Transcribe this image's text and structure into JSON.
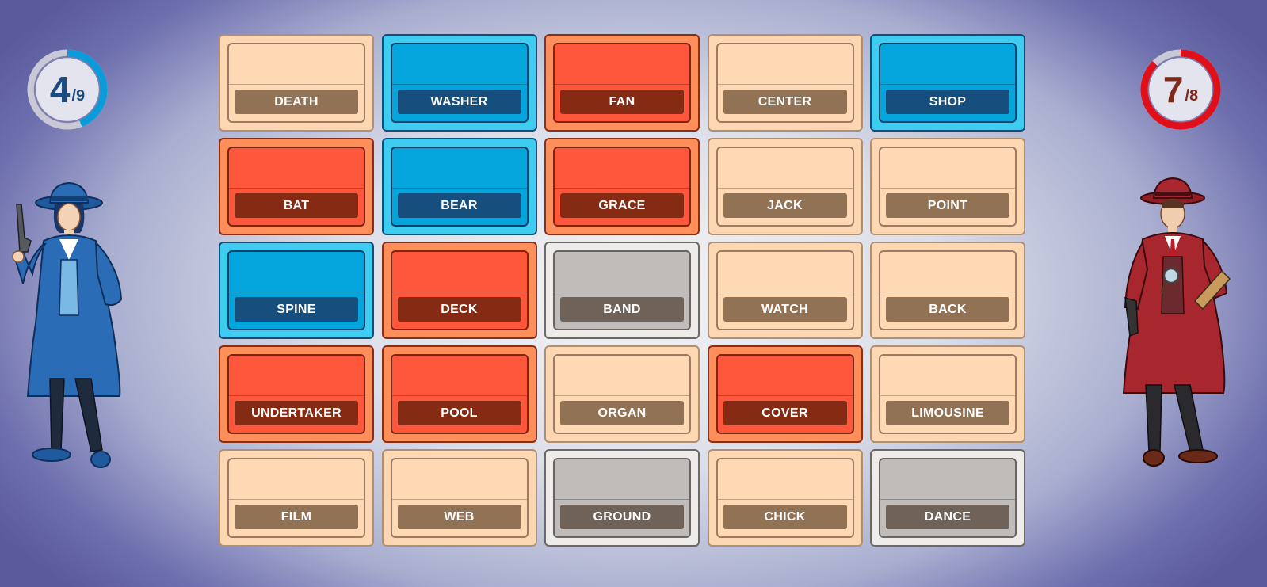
{
  "scores": {
    "blue": {
      "remaining": "4",
      "total": "/9",
      "color": "#0a9bd8",
      "progress": 0.44
    },
    "red": {
      "remaining": "7",
      "total": "/8",
      "color": "#e0101a",
      "progress": 0.875
    }
  },
  "agents": {
    "blue": {
      "icon": "blue-detective-icon"
    },
    "red": {
      "icon": "red-detective-icon"
    }
  },
  "board": {
    "cards": [
      {
        "word": "DEATH",
        "team": "neutral"
      },
      {
        "word": "WASHER",
        "team": "blue"
      },
      {
        "word": "FAN",
        "team": "red"
      },
      {
        "word": "CENTER",
        "team": "neutral"
      },
      {
        "word": "SHOP",
        "team": "blue"
      },
      {
        "word": "BAT",
        "team": "red"
      },
      {
        "word": "BEAR",
        "team": "blue"
      },
      {
        "word": "GRACE",
        "team": "red"
      },
      {
        "word": "JACK",
        "team": "neutral"
      },
      {
        "word": "POINT",
        "team": "neutral"
      },
      {
        "word": "SPINE",
        "team": "blue"
      },
      {
        "word": "DECK",
        "team": "red"
      },
      {
        "word": "BAND",
        "team": "gray"
      },
      {
        "word": "WATCH",
        "team": "neutral"
      },
      {
        "word": "BACK",
        "team": "neutral"
      },
      {
        "word": "UNDERTAKER",
        "team": "red"
      },
      {
        "word": "POOL",
        "team": "red"
      },
      {
        "word": "ORGAN",
        "team": "neutral"
      },
      {
        "word": "COVER",
        "team": "red"
      },
      {
        "word": "LIMOUSINE",
        "team": "neutral"
      },
      {
        "word": "FILM",
        "team": "neutral"
      },
      {
        "word": "WEB",
        "team": "neutral"
      },
      {
        "word": "GROUND",
        "team": "gray"
      },
      {
        "word": "CHICK",
        "team": "neutral"
      },
      {
        "word": "DANCE",
        "team": "gray"
      }
    ]
  }
}
